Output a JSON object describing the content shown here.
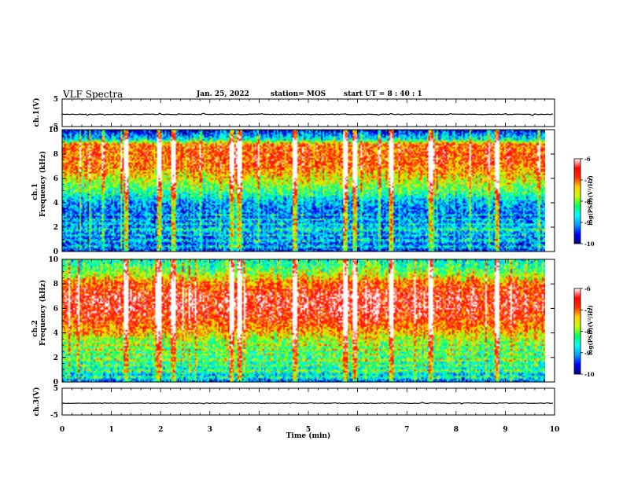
{
  "header": {
    "title": "VLF Spectra",
    "date": "Jan. 25, 2022",
    "station": "station= MOS",
    "start": "start  UT =   8 : 40 : 1"
  },
  "chart_data": {
    "type": "heatmap",
    "x": {
      "label": "Time  (min)",
      "range": [
        0,
        10
      ],
      "ticks": [
        "0",
        "1",
        "2",
        "3",
        "4",
        "5",
        "6",
        "7",
        "8",
        "9",
        "10"
      ]
    },
    "panels": [
      {
        "id": "ch1-waveform",
        "ylabel": "ch.1(V)",
        "yrange": [
          -5,
          5
        ],
        "ytick_labels": [
          "5",
          "-5"
        ]
      },
      {
        "id": "ch1-spectrogram",
        "ylabel_line1": "ch.1",
        "ylabel_line2": "Frequency (kHz)",
        "yrange": [
          0,
          10
        ],
        "ytick_labels": [
          "10",
          "8",
          "6",
          "4",
          "2",
          "0"
        ],
        "colorbar": {
          "label": "log(PSD)(V²/Hz)",
          "ticks": [
            "-6",
            "-7",
            "-8",
            "-9",
            "-10"
          ]
        }
      },
      {
        "id": "ch2-spectrogram",
        "ylabel_line1": "ch.2",
        "ylabel_line2": "Frequency (kHz)",
        "yrange": [
          0,
          10
        ],
        "ytick_labels": [
          "10",
          "8",
          "6",
          "4",
          "2",
          "0"
        ],
        "colorbar": {
          "label": "log(PSD)(V²/Hz)",
          "ticks": [
            "-6",
            "-7",
            "-8",
            "-9",
            "-10"
          ]
        }
      },
      {
        "id": "ch3-waveform",
        "ylabel": "ch.3(V)",
        "yrange": [
          -5,
          5
        ],
        "ytick_labels": [
          "5",
          "-5"
        ]
      }
    ],
    "colorscale": [
      "#00007f",
      "#0000ff",
      "#00a0ff",
      "#00ffff",
      "#00ff60",
      "#c8ff00",
      "#ffd000",
      "#ff3000",
      "#ff0000",
      "#ffffff"
    ],
    "colorscale_range": [
      -10,
      -6
    ],
    "spectrogram_profile": {
      "ch1_psd_by_freq_kHz": [
        [
          0,
          -9.5
        ],
        [
          1,
          -9.2
        ],
        [
          2,
          -9.0
        ],
        [
          3,
          -9.3
        ],
        [
          4,
          -9.0
        ],
        [
          5,
          -8.2
        ],
        [
          6,
          -7.6
        ],
        [
          7,
          -7.0
        ],
        [
          8,
          -6.9
        ],
        [
          8.8,
          -7.0
        ],
        [
          9.2,
          -8.6
        ],
        [
          10,
          -9.8
        ]
      ],
      "ch2_psd_by_freq_kHz": [
        [
          0,
          -9.2
        ],
        [
          1,
          -8.6
        ],
        [
          2,
          -8.3
        ],
        [
          3,
          -8.1
        ],
        [
          4,
          -7.4
        ],
        [
          5,
          -6.8
        ],
        [
          6,
          -6.5
        ],
        [
          7,
          -6.5
        ],
        [
          8,
          -7.0
        ],
        [
          9,
          -8.0
        ],
        [
          10,
          -8.6
        ]
      ],
      "interference_lines_kHz": [
        0.4,
        0.9,
        1.3,
        1.8,
        2.2,
        2.6,
        3.0
      ],
      "impulse_events_min": [
        1.3,
        2.0,
        2.3,
        3.5,
        3.65,
        4.8,
        5.85,
        6.05,
        6.8,
        7.6,
        9.0
      ]
    }
  }
}
